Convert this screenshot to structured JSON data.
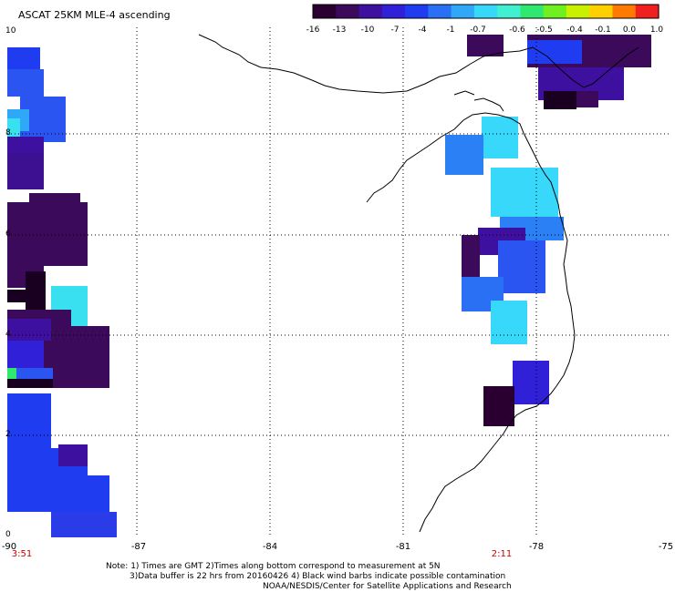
{
  "title": "ASCAT 25KM MLE-4 ascending",
  "colorbar": {
    "ticks": [
      "-16",
      "-13",
      "-10",
      "-7",
      "-4",
      "-1",
      "-0.7",
      "-0.6",
      "-0.5",
      "-0.4",
      "-0.1",
      "0.0",
      "1.0"
    ],
    "colors": [
      "#2a0030",
      "#3c0a5a",
      "#3d10a0",
      "#3020d8",
      "#1f3cf0",
      "#2a70f4",
      "#30a8f8",
      "#38d8fa",
      "#40f0d0",
      "#30e870",
      "#70f020",
      "#c8f000",
      "#ffd000",
      "#ff7a00",
      "#f02020"
    ]
  },
  "axes": {
    "x_ticks": [
      "-90",
      "-87",
      "-84",
      "-81",
      "-78",
      "-75"
    ],
    "y_ticks": [
      "10",
      "8",
      "6",
      "4",
      "2",
      "0"
    ]
  },
  "time_labels": {
    "left": "3:51",
    "right": "2:11"
  },
  "notes": [
    "Note: 1) Times are GMT 2)Times along bottom correspond to measurement at 5N",
    "3)Data buffer is 22 hrs from 20160426 4) Black wind barbs indicate possible contamination",
    "NOAA/NESDIS/Center for Satellite Applications and Research"
  ],
  "colors": {
    "time_label": "#cc0000",
    "grid": "#000000"
  }
}
